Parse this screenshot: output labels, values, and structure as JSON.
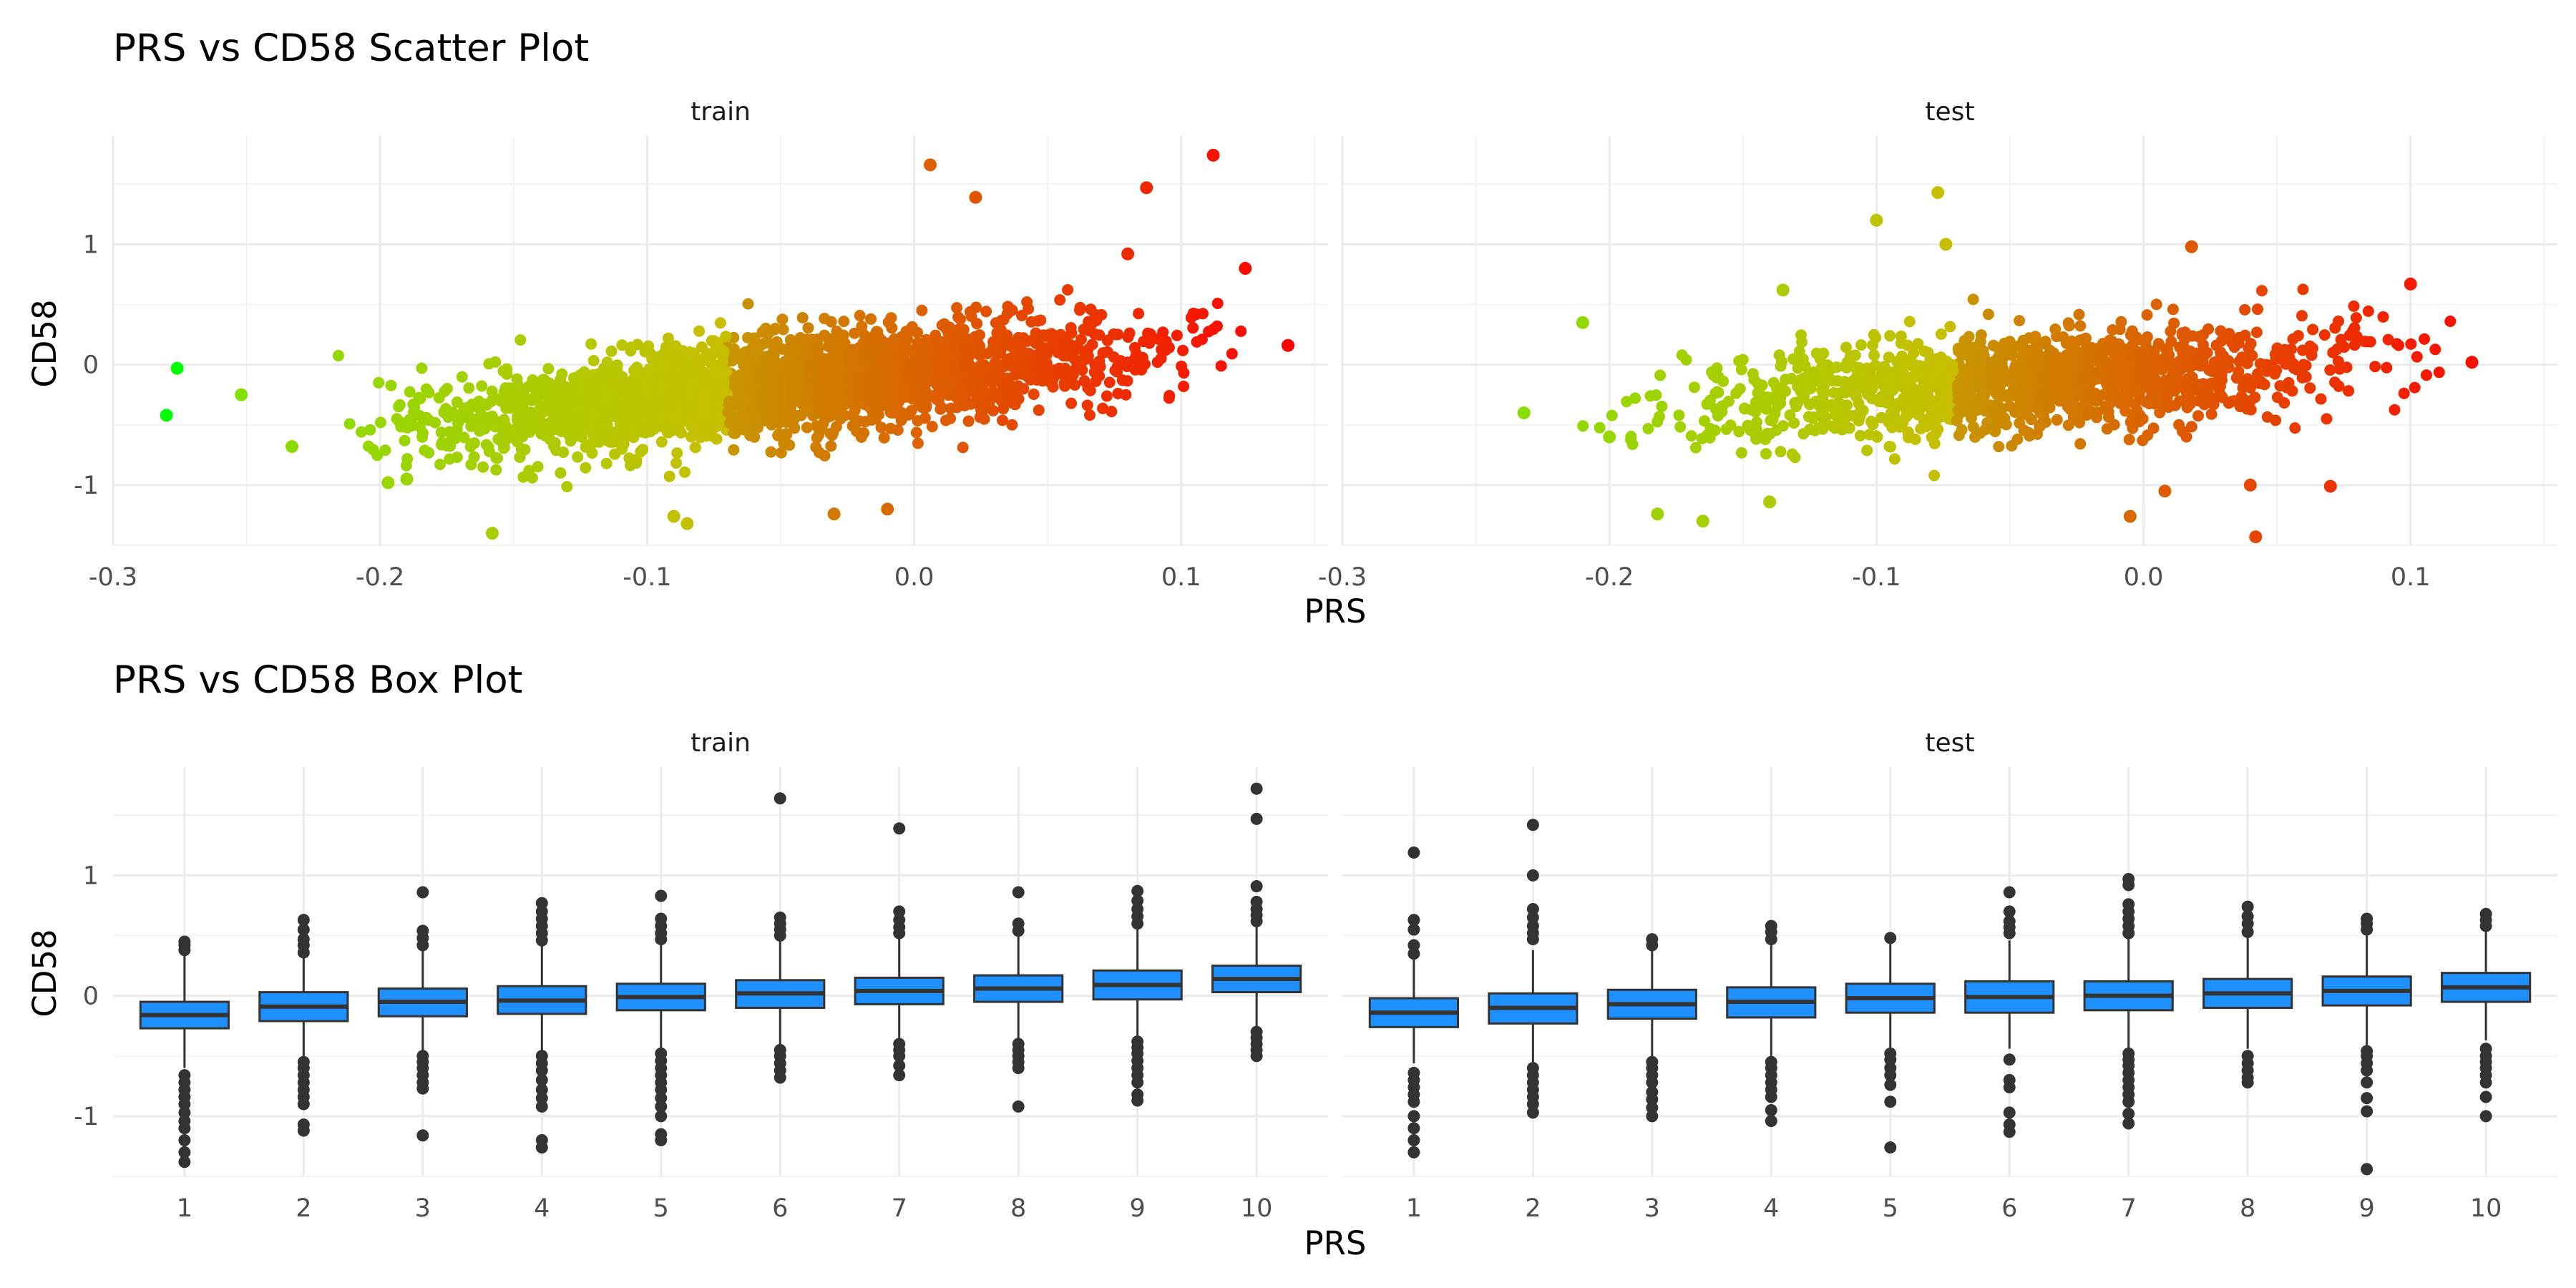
{
  "chart_data": [
    {
      "type": "scatter",
      "title": "PRS vs CD58 Scatter Plot",
      "xlabel": "PRS",
      "ylabel": "CD58",
      "x_ticks": [
        "-0.3",
        "-0.2",
        "-0.1",
        "0.0",
        "0.1"
      ],
      "y_ticks": [
        "-1",
        "0",
        "1"
      ],
      "xlim": [
        -0.3,
        0.155
      ],
      "ylim": [
        -1.5,
        1.9
      ],
      "color_scale": {
        "low": "#00ff00",
        "high": "#ff0000",
        "mapped_to": "PRS"
      },
      "panels": [
        {
          "name": "train",
          "cloud": {
            "x_min": -0.24,
            "x_max": 0.14,
            "intercept": -0.06,
            "slope": 2.3,
            "spread": 0.2,
            "n": 2600
          },
          "points": [
            {
              "x": -0.28,
              "y": -0.42
            },
            {
              "x": -0.276,
              "y": -0.03
            },
            {
              "x": -0.252,
              "y": -0.25
            },
            {
              "x": -0.233,
              "y": -0.68
            },
            {
              "x": -0.197,
              "y": -0.98
            },
            {
              "x": -0.19,
              "y": -0.95
            },
            {
              "x": -0.158,
              "y": -1.4
            },
            {
              "x": -0.09,
              "y": -1.26
            },
            {
              "x": -0.085,
              "y": -1.32
            },
            {
              "x": -0.03,
              "y": -1.24
            },
            {
              "x": -0.01,
              "y": -1.2
            },
            {
              "x": 0.006,
              "y": 1.66
            },
            {
              "x": 0.023,
              "y": 1.39
            },
            {
              "x": 0.087,
              "y": 1.47
            },
            {
              "x": 0.112,
              "y": 1.74
            },
            {
              "x": 0.124,
              "y": 0.8
            },
            {
              "x": 0.14,
              "y": 0.16
            },
            {
              "x": 0.08,
              "y": 0.92
            }
          ]
        },
        {
          "name": "test",
          "cloud": {
            "x_min": -0.22,
            "x_max": 0.13,
            "intercept": -0.09,
            "slope": 1.5,
            "spread": 0.2,
            "n": 1400
          },
          "points": [
            {
              "x": -0.232,
              "y": -0.4
            },
            {
              "x": -0.21,
              "y": 0.35
            },
            {
              "x": -0.2,
              "y": -0.6
            },
            {
              "x": -0.182,
              "y": -1.24
            },
            {
              "x": -0.165,
              "y": -1.3
            },
            {
              "x": -0.14,
              "y": -1.14
            },
            {
              "x": -0.135,
              "y": 0.62
            },
            {
              "x": -0.1,
              "y": 1.2
            },
            {
              "x": -0.077,
              "y": 1.43
            },
            {
              "x": -0.074,
              "y": 1.0
            },
            {
              "x": -0.005,
              "y": -1.26
            },
            {
              "x": 0.008,
              "y": -1.05
            },
            {
              "x": 0.018,
              "y": 0.98
            },
            {
              "x": 0.04,
              "y": -1.0
            },
            {
              "x": 0.042,
              "y": -1.43
            },
            {
              "x": 0.07,
              "y": -1.01
            },
            {
              "x": 0.1,
              "y": 0.67
            },
            {
              "x": 0.123,
              "y": 0.02
            }
          ]
        }
      ]
    },
    {
      "type": "box",
      "title": "PRS vs CD58 Box Plot",
      "xlabel": "PRS",
      "ylabel": "CD58",
      "categories": [
        "1",
        "2",
        "3",
        "4",
        "5",
        "6",
        "7",
        "8",
        "9",
        "10"
      ],
      "y_ticks": [
        "-1",
        "0",
        "1"
      ],
      "ylim": [
        -1.5,
        1.9
      ],
      "box_color": "#1e90ff",
      "panels": [
        {
          "name": "train",
          "boxes": [
            {
              "q1": -0.27,
              "median": -0.16,
              "q3": -0.05,
              "lo": -0.6,
              "hi": 0.35,
              "out_lo": [
                -0.66,
                -0.72,
                -0.78,
                -0.84,
                -0.9,
                -0.97,
                -1.04,
                -1.1,
                -1.2,
                -1.3,
                -1.38
              ],
              "out_hi": [
                0.38,
                0.42,
                0.45
              ]
            },
            {
              "q1": -0.21,
              "median": -0.09,
              "q3": 0.03,
              "lo": -0.52,
              "hi": 0.33,
              "out_lo": [
                -0.55,
                -0.6,
                -0.66,
                -0.72,
                -0.78,
                -0.84,
                -0.9,
                -1.07,
                -1.12
              ],
              "out_hi": [
                0.36,
                0.42,
                0.47,
                0.55,
                0.63
              ]
            },
            {
              "q1": -0.17,
              "median": -0.05,
              "q3": 0.06,
              "lo": -0.47,
              "hi": 0.39,
              "out_lo": [
                -0.5,
                -0.55,
                -0.6,
                -0.66,
                -0.72,
                -0.77,
                -1.16
              ],
              "out_hi": [
                0.42,
                0.48,
                0.54,
                0.86
              ]
            },
            {
              "q1": -0.15,
              "median": -0.04,
              "q3": 0.08,
              "lo": -0.46,
              "hi": 0.42,
              "out_lo": [
                -0.5,
                -0.56,
                -0.62,
                -0.7,
                -0.78,
                -0.85,
                -0.92,
                -1.2,
                -1.26
              ],
              "out_hi": [
                0.46,
                0.52,
                0.58,
                0.64,
                0.7,
                0.77
              ]
            },
            {
              "q1": -0.12,
              "median": -0.01,
              "q3": 0.1,
              "lo": -0.44,
              "hi": 0.43,
              "out_lo": [
                -0.48,
                -0.54,
                -0.6,
                -0.66,
                -0.72,
                -0.78,
                -0.85,
                -0.92,
                -1.0,
                -1.15,
                -1.2
              ],
              "out_hi": [
                0.47,
                0.52,
                0.58,
                0.64,
                0.83
              ]
            },
            {
              "q1": -0.1,
              "median": 0.02,
              "q3": 0.13,
              "lo": -0.42,
              "hi": 0.46,
              "out_lo": [
                -0.45,
                -0.5,
                -0.56,
                -0.62,
                -0.68
              ],
              "out_hi": [
                0.5,
                0.55,
                0.6,
                0.65,
                1.64
              ]
            },
            {
              "q1": -0.07,
              "median": 0.04,
              "q3": 0.15,
              "lo": -0.36,
              "hi": 0.48,
              "out_lo": [
                -0.4,
                -0.45,
                -0.5,
                -0.58,
                -0.66
              ],
              "out_hi": [
                0.52,
                0.57,
                0.63,
                0.7,
                1.39
              ]
            },
            {
              "q1": -0.05,
              "median": 0.06,
              "q3": 0.17,
              "lo": -0.36,
              "hi": 0.5,
              "out_lo": [
                -0.4,
                -0.45,
                -0.5,
                -0.55,
                -0.6,
                -0.92
              ],
              "out_hi": [
                0.54,
                0.6,
                0.86
              ]
            },
            {
              "q1": -0.03,
              "median": 0.09,
              "q3": 0.21,
              "lo": -0.34,
              "hi": 0.55,
              "out_lo": [
                -0.38,
                -0.43,
                -0.48,
                -0.54,
                -0.6,
                -0.66,
                -0.72,
                -0.82,
                -0.87
              ],
              "out_hi": [
                0.6,
                0.66,
                0.72,
                0.79,
                0.87
              ]
            },
            {
              "q1": 0.03,
              "median": 0.14,
              "q3": 0.25,
              "lo": -0.27,
              "hi": 0.58,
              "out_lo": [
                -0.3,
                -0.35,
                -0.4,
                -0.45,
                -0.5
              ],
              "out_hi": [
                0.62,
                0.67,
                0.72,
                0.78,
                0.91,
                1.47,
                1.72
              ]
            }
          ]
        },
        {
          "name": "test",
          "boxes": [
            {
              "q1": -0.26,
              "median": -0.14,
              "q3": -0.02,
              "lo": -0.56,
              "hi": 0.3,
              "out_lo": [
                -0.64,
                -0.7,
                -0.76,
                -0.82,
                -0.88,
                -1.0,
                -1.1,
                -1.2,
                -1.3
              ],
              "out_hi": [
                0.35,
                0.42,
                0.55,
                0.63,
                1.19
              ]
            },
            {
              "q1": -0.23,
              "median": -0.1,
              "q3": 0.02,
              "lo": -0.55,
              "hi": 0.38,
              "out_lo": [
                -0.6,
                -0.66,
                -0.72,
                -0.78,
                -0.84,
                -0.9,
                -0.97
              ],
              "out_hi": [
                0.47,
                0.52,
                0.58,
                0.65,
                0.72,
                1.0,
                1.42
              ]
            },
            {
              "q1": -0.19,
              "median": -0.07,
              "q3": 0.05,
              "lo": -0.5,
              "hi": 0.38,
              "out_lo": [
                -0.55,
                -0.6,
                -0.66,
                -0.72,
                -0.8,
                -0.86,
                -0.93,
                -1.0
              ],
              "out_hi": [
                0.42,
                0.47
              ]
            },
            {
              "q1": -0.18,
              "median": -0.05,
              "q3": 0.07,
              "lo": -0.5,
              "hi": 0.42,
              "out_lo": [
                -0.55,
                -0.6,
                -0.66,
                -0.72,
                -0.78,
                -0.84,
                -0.95,
                -1.04
              ],
              "out_hi": [
                0.47,
                0.53,
                0.58
              ]
            },
            {
              "q1": -0.14,
              "median": -0.02,
              "q3": 0.1,
              "lo": -0.44,
              "hi": 0.43,
              "out_lo": [
                -0.48,
                -0.53,
                -0.6,
                -0.66,
                -0.74,
                -0.88,
                -1.26
              ],
              "out_hi": [
                0.48
              ]
            },
            {
              "q1": -0.14,
              "median": -0.01,
              "q3": 0.12,
              "lo": -0.44,
              "hi": 0.46,
              "out_lo": [
                -0.53,
                -0.7,
                -0.76,
                -0.97,
                -1.07,
                -1.13
              ],
              "out_hi": [
                0.52,
                0.57,
                0.62,
                0.7,
                0.86
              ]
            },
            {
              "q1": -0.12,
              "median": 0.0,
              "q3": 0.12,
              "lo": -0.44,
              "hi": 0.48,
              "out_lo": [
                -0.48,
                -0.53,
                -0.58,
                -0.64,
                -0.7,
                -0.76,
                -0.82,
                -0.88,
                -0.98,
                -1.06
              ],
              "out_hi": [
                0.52,
                0.58,
                0.64,
                0.7,
                0.76,
                0.92,
                0.97
              ]
            },
            {
              "q1": -0.1,
              "median": 0.02,
              "q3": 0.14,
              "lo": -0.44,
              "hi": 0.48,
              "out_lo": [
                -0.5,
                -0.56,
                -0.62,
                -0.68,
                -0.72
              ],
              "out_hi": [
                0.53,
                0.6,
                0.66,
                0.74
              ]
            },
            {
              "q1": -0.08,
              "median": 0.04,
              "q3": 0.16,
              "lo": -0.42,
              "hi": 0.5,
              "out_lo": [
                -0.46,
                -0.5,
                -0.56,
                -0.62,
                -0.72,
                -0.85,
                -0.96,
                -1.44
              ],
              "out_hi": [
                0.55,
                0.6,
                0.64
              ]
            },
            {
              "q1": -0.05,
              "median": 0.07,
              "q3": 0.19,
              "lo": -0.37,
              "hi": 0.53,
              "out_lo": [
                -0.44,
                -0.5,
                -0.55,
                -0.6,
                -0.66,
                -0.72,
                -0.84,
                -1.0
              ],
              "out_hi": [
                0.58,
                0.63,
                0.68
              ]
            }
          ]
        }
      ]
    }
  ]
}
